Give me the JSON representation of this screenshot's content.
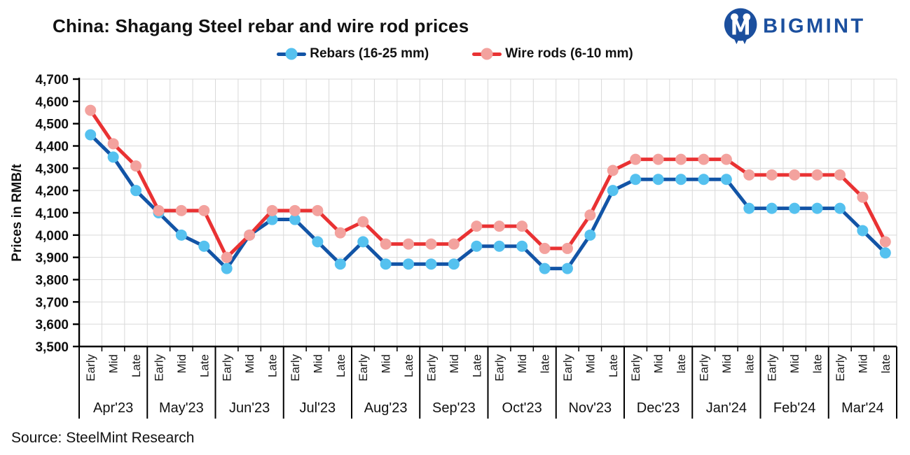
{
  "header": {
    "title": "China: Shagang Steel rebar and wire rod prices",
    "brand": "BIGMINT",
    "brand_color": "#1b4f9e"
  },
  "footer": {
    "source": "Source: SteelMint Research"
  },
  "chart_data": {
    "type": "line",
    "title": "China: Shagang Steel rebar and wire rod prices",
    "xlabel": "",
    "ylabel": "Prices in RMB/t",
    "ylim": [
      3500,
      4700
    ],
    "ytick_step": 100,
    "grid": true,
    "legend_position": "top-center",
    "axis_color": "#000000",
    "grid_color": "#d9d9d9",
    "months": [
      {
        "label": "Apr'23",
        "periods": [
          "Early",
          "Mid",
          "Late"
        ]
      },
      {
        "label": "May'23",
        "periods": [
          "Early",
          "Mid",
          "Late"
        ]
      },
      {
        "label": "Jun'23",
        "periods": [
          "Early",
          "Mid",
          "Late"
        ]
      },
      {
        "label": "Jul'23",
        "periods": [
          "Early",
          "Mid",
          "Late"
        ]
      },
      {
        "label": "Aug'23",
        "periods": [
          "Early",
          "Mid",
          "Late"
        ]
      },
      {
        "label": "Sep'23",
        "periods": [
          "Early",
          "Mid",
          "Late"
        ]
      },
      {
        "label": "Oct'23",
        "periods": [
          "Early",
          "Mid",
          "late"
        ]
      },
      {
        "label": "Nov'23",
        "periods": [
          "Early",
          "Mid",
          "Late"
        ]
      },
      {
        "label": "Dec'23",
        "periods": [
          "Early",
          "Mid",
          "late"
        ]
      },
      {
        "label": "Jan'24",
        "periods": [
          "Early",
          "Mid",
          "late"
        ]
      },
      {
        "label": "Feb'24",
        "periods": [
          "Early",
          "Mid",
          "late"
        ]
      },
      {
        "label": "Mar'24",
        "periods": [
          "Early",
          "Mid",
          "late"
        ]
      }
    ],
    "series": [
      {
        "name": "Rebars (16-25 mm)",
        "line_color": "#1254a6",
        "marker_color": "#55c1ef",
        "values": [
          4450,
          4350,
          4200,
          4100,
          4000,
          3950,
          3850,
          4000,
          4070,
          4070,
          3970,
          3870,
          3970,
          3870,
          3870,
          3870,
          3870,
          3950,
          3950,
          3950,
          3850,
          3850,
          4000,
          4200,
          4250,
          4250,
          4250,
          4250,
          4250,
          4120,
          4120,
          4120,
          4120,
          4120,
          4020,
          3920
        ]
      },
      {
        "name": "Wire rods (6-10 mm)",
        "line_color": "#e93233",
        "marker_color": "#f3a29e",
        "values": [
          4560,
          4410,
          4310,
          4110,
          4110,
          4110,
          3900,
          4000,
          4110,
          4110,
          4110,
          4010,
          4060,
          3960,
          3960,
          3960,
          3960,
          4040,
          4040,
          4040,
          3940,
          3940,
          4090,
          4290,
          4340,
          4340,
          4340,
          4340,
          4340,
          4270,
          4270,
          4270,
          4270,
          4270,
          4170,
          3970
        ]
      }
    ]
  }
}
